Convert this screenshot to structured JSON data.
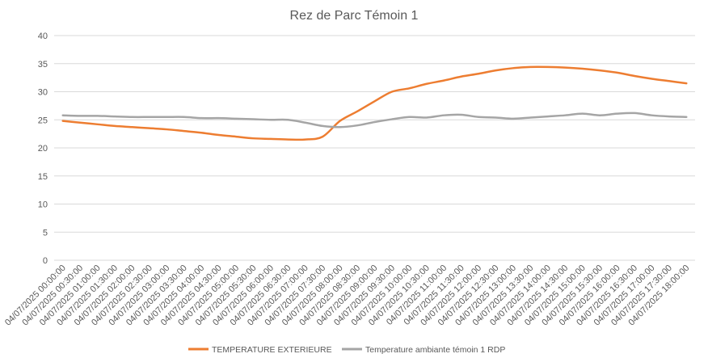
{
  "chart_data": {
    "type": "line",
    "title": "Rez de Parc Témoin 1",
    "xlabel": "",
    "ylabel": "",
    "ylim": [
      0,
      40
    ],
    "yticks": [
      0,
      5,
      10,
      15,
      20,
      25,
      30,
      35,
      40
    ],
    "grid": true,
    "legend_position": "bottom",
    "x": [
      "04/07/2025 00:00:00",
      "04/07/2025 00:30:00",
      "04/07/2025 01:00:00",
      "04/07/2025 01:30:00",
      "04/07/2025 02:00:00",
      "04/07/2025 02:30:00",
      "04/07/2025 03:00:00",
      "04/07/2025 03:30:00",
      "04/07/2025 04:00:00",
      "04/07/2025 04:30:00",
      "04/07/2025 05:00:00",
      "04/07/2025 05:30:00",
      "04/07/2025 06:00:00",
      "04/07/2025 06:30:00",
      "04/07/2025 07:00:00",
      "04/07/2025 07:30:00",
      "04/07/2025 08:00:00",
      "04/07/2025 08:30:00",
      "04/07/2025 09:00:00",
      "04/07/2025 09:30:00",
      "04/07/2025 10:00:00",
      "04/07/2025 10:30:00",
      "04/07/2025 11:00:00",
      "04/07/2025 11:30:00",
      "04/07/2025 12:00:00",
      "04/07/2025 12:30:00",
      "04/07/2025 13:00:00",
      "04/07/2025 13:30:00",
      "04/07/2025 14:00:00",
      "04/07/2025 14:30:00",
      "04/07/2025 15:00:00",
      "04/07/2025 15:30:00",
      "04/07/2025 16:00:00",
      "04/07/2025 16:30:00",
      "04/07/2025 17:00:00",
      "04/07/2025 17:30:00",
      "04/07/2025 18:00:00"
    ],
    "series": [
      {
        "name": "TEMPERATURE EXTERIEURE",
        "color": "#ED7D31",
        "values": [
          24.8,
          24.5,
          24.2,
          23.9,
          23.7,
          23.5,
          23.3,
          23.0,
          22.7,
          22.3,
          22.0,
          21.7,
          21.6,
          21.5,
          21.5,
          22.0,
          24.8,
          26.5,
          28.3,
          30.0,
          30.6,
          31.4,
          32.0,
          32.7,
          33.2,
          33.8,
          34.2,
          34.4,
          34.4,
          34.3,
          34.1,
          33.8,
          33.4,
          32.8,
          32.3,
          31.9,
          31.5
        ]
      },
      {
        "name": "Temperature ambiante témoin 1 RDP",
        "color": "#A5A5A5",
        "values": [
          25.8,
          25.7,
          25.7,
          25.6,
          25.5,
          25.5,
          25.5,
          25.5,
          25.3,
          25.3,
          25.2,
          25.1,
          25.0,
          25.0,
          24.5,
          23.9,
          23.7,
          24.0,
          24.6,
          25.1,
          25.5,
          25.4,
          25.8,
          25.9,
          25.5,
          25.4,
          25.2,
          25.4,
          25.6,
          25.8,
          26.1,
          25.8,
          26.1,
          26.2,
          25.8,
          25.6,
          25.5
        ]
      }
    ]
  }
}
